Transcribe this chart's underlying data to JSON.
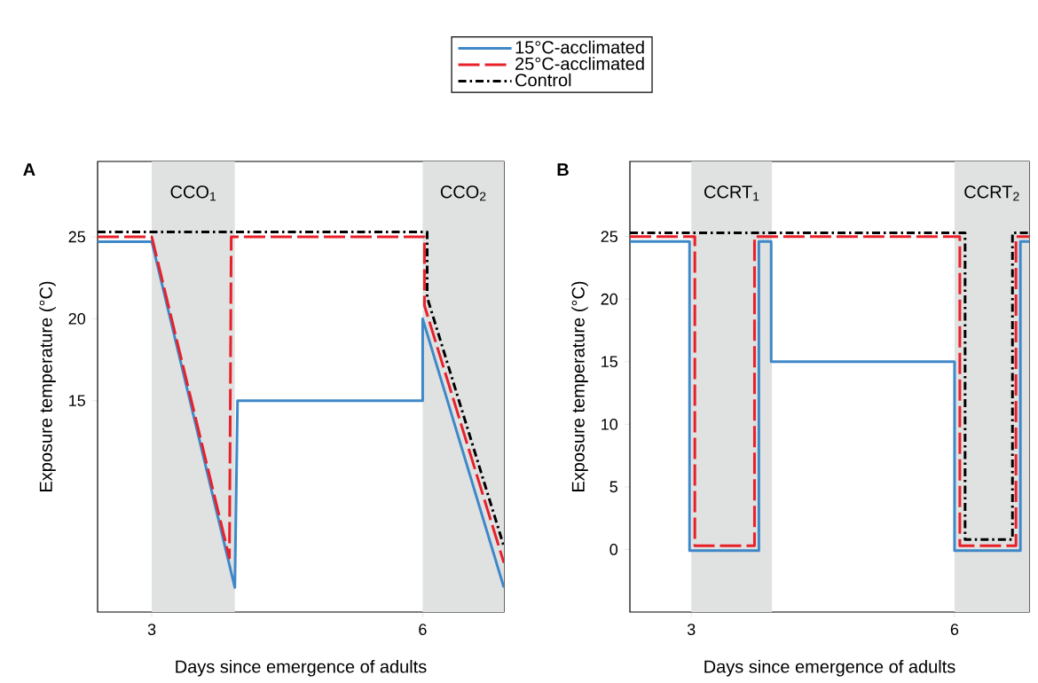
{
  "chart_data": [
    {
      "type": "line",
      "title": "A",
      "xlabel": "Days since emergence of adults",
      "ylabel": "Exposure temperature (°C)",
      "xlim": [
        2.4,
        6.9
      ],
      "ylim": [
        2.1,
        29.6
      ],
      "xticks": [
        3,
        6
      ],
      "yticks": [
        15,
        20,
        25
      ],
      "legend": "top",
      "bands": [
        {
          "axis": "x",
          "from": 3,
          "to": 3.92,
          "label": "CCO$_{1}$",
          "color": "#e0e1e1"
        },
        {
          "axis": "x",
          "from": 6,
          "to": 6.9,
          "label": "CCO$_{2}$",
          "color": "#e0e1e1"
        }
      ],
      "series": [
        {
          "name": "15°C-acclimated",
          "color": "#3f88c8",
          "line_style": "solid",
          "x": [
            2.4,
            3,
            3.92,
            3.95,
            6,
            6,
            6.9
          ],
          "values": [
            24.7,
            24.7,
            3.6,
            15,
            15,
            20,
            3.6
          ]
        },
        {
          "name": "25°C-acclimated",
          "color": "#e8202a",
          "line_style": "dashed",
          "x": [
            2.4,
            3,
            3.86,
            3.88,
            6.02,
            6.02,
            6.9
          ],
          "values": [
            25,
            25,
            5.4,
            25,
            25,
            20.8,
            5.1
          ]
        },
        {
          "name": "Control",
          "color": "#000000",
          "line_style": "dashdot",
          "x": [
            2.4,
            6.05,
            6.05,
            6.9
          ],
          "values": [
            25.3,
            25.3,
            21.3,
            6.1
          ]
        }
      ]
    },
    {
      "type": "line",
      "title": "B",
      "xlabel": "Days since emergence of adults",
      "ylabel": "Exposure temperature (°C)",
      "xlim": [
        2.3,
        6.85
      ],
      "ylim": [
        -5,
        31
      ],
      "xticks": [
        3,
        6
      ],
      "yticks": [
        0,
        5,
        10,
        15,
        20,
        25
      ],
      "bands": [
        {
          "axis": "x",
          "from": 3,
          "to": 3.92,
          "label": "CCRT$_{1}$",
          "color": "#e0e1e1"
        },
        {
          "axis": "x",
          "from": 6,
          "to": 6.85,
          "label": "CCRT$_{2}$",
          "color": "#e0e1e1"
        }
      ],
      "series": [
        {
          "color": "#3f88c8",
          "line_style": "solid",
          "x": [
            2.3,
            2.98,
            2.98,
            3.77,
            3.77,
            3.91,
            3.91,
            6,
            6,
            6.75,
            6.75,
            6.85
          ],
          "values": [
            24.6,
            24.6,
            -0.1,
            -0.1,
            24.6,
            24.6,
            15,
            15,
            -0.1,
            -0.1,
            24.6,
            24.6
          ]
        },
        {
          "color": "#e8202a",
          "line_style": "dashed",
          "x": [
            2.3,
            3.04,
            3.04,
            3.72,
            3.72,
            6.06,
            6.06,
            6.7,
            6.7,
            6.85
          ],
          "values": [
            25,
            25,
            0.3,
            0.3,
            25,
            25,
            0.3,
            0.3,
            25,
            25
          ]
        },
        {
          "color": "#000000",
          "line_style": "dashdot",
          "x": [
            2.3,
            6.12,
            6.12,
            6.66,
            6.66,
            6.85
          ],
          "values": [
            25.3,
            25.3,
            0.8,
            0.8,
            25.3,
            25.3
          ]
        }
      ]
    }
  ]
}
